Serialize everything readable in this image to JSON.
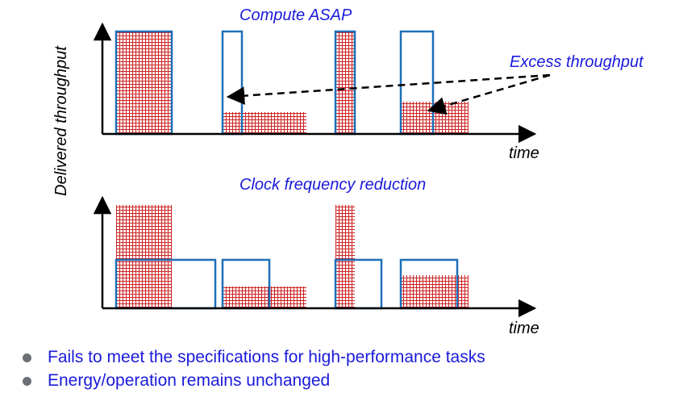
{
  "top_panel": {
    "title": "Compute ASAP",
    "annotation": "Excess throughput",
    "x_axis_label": "time"
  },
  "bottom_panel": {
    "title": "Clock frequency reduction",
    "x_axis_label": "time"
  },
  "y_axis_label": "Delivered throughput",
  "bullets": [
    "Fails to meet the specifications for high-performance tasks",
    "Energy/operation remains unchanged"
  ],
  "colors": {
    "outline_blue": "#1d6fb8",
    "hatch_red": "#cc2222",
    "text_blue": "#1a1adc"
  }
}
